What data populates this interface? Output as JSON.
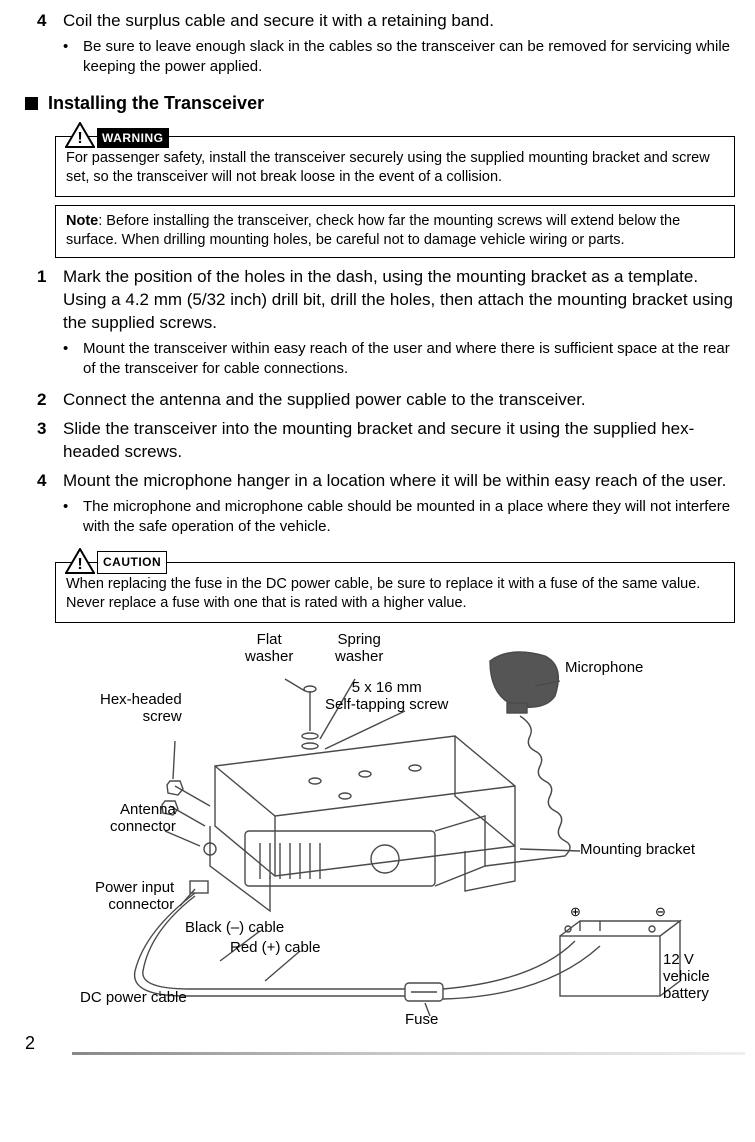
{
  "step4": {
    "num": "4",
    "text": "Coil the surplus cable and secure it with a retaining band."
  },
  "step4_sub": "Be sure to leave enough slack in the cables so the transceiver can be removed for servicing while keeping the power applied.",
  "section_title": "Installing the Transceiver",
  "warning_badge": "WARNING",
  "warning_text": "For passenger safety, install the transceiver securely using the supplied mounting bracket and screw set, so the transceiver will not break loose in the event of a collision.",
  "note_label": "Note",
  "note_text": ":  Before installing the transceiver, check how far the mounting screws will extend below the surface.  When drilling mounting holes, be careful not to damage vehicle wiring or parts.",
  "install_steps": [
    {
      "num": "1",
      "text": "Mark the position of the holes in the dash, using the mounting bracket as a template.  Using a 4.2 mm (5/32 inch) drill bit, drill the holes, then attach the mounting bracket using the supplied screws.",
      "sub": "Mount the transceiver within easy reach of the user and where there is sufficient space at the rear of the transceiver for cable connections."
    },
    {
      "num": "2",
      "text": "Connect the antenna and the supplied power cable to the transceiver."
    },
    {
      "num": "3",
      "text": "Slide the transceiver into the mounting bracket and secure it using the supplied hex-headed screws."
    },
    {
      "num": "4",
      "text": "Mount the microphone hanger in a location where it will be within easy reach of the user.",
      "sub": "The microphone and microphone cable should be mounted in a place where they will not interfere with the safe operation of the vehicle."
    }
  ],
  "caution_badge": "CAUTION",
  "caution_text": "When replacing the fuse in the DC power cable, be sure to replace it with a fuse of the same value.  Never replace a fuse with one that is rated with a higher value.",
  "diagram": {
    "flat_washer": "Flat\nwasher",
    "spring_washer": "Spring\nwasher",
    "microphone": "Microphone",
    "hex_screw": "Hex-headed\nscrew",
    "self_tap": "5 x 16 mm\nSelf-tapping screw",
    "antenna": "Antenna\nconnector",
    "mounting_bracket": "Mounting bracket",
    "power_input": "Power input\nconnector",
    "black_cable": "Black (–) cable",
    "red_cable": "Red (+) cable",
    "dc_cable": "DC power cable",
    "fuse": "Fuse",
    "battery": "12 V vehicle\nbattery",
    "plus": "+",
    "minus": "–"
  },
  "page_number": "2",
  "colors": {
    "text": "#000000",
    "bg": "#ffffff",
    "line_art": "#4a4a4a"
  }
}
